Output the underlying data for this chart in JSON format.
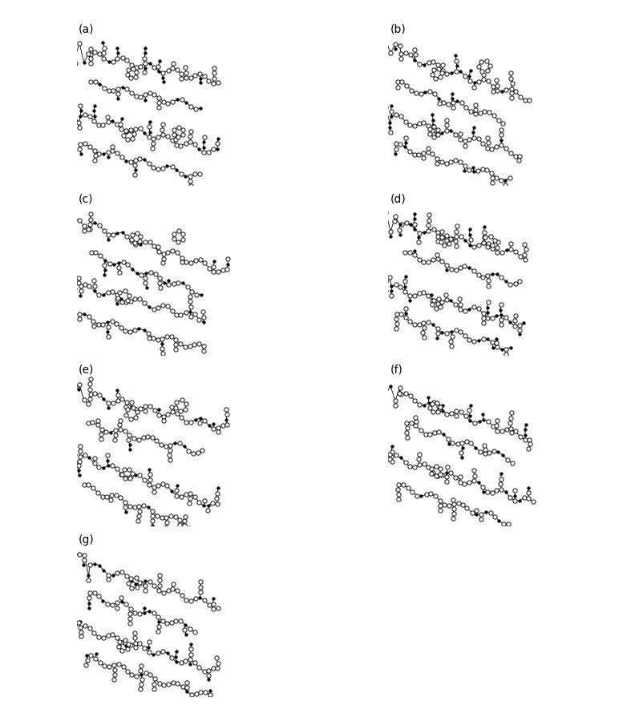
{
  "panels": [
    {
      "label": "(a)",
      "row": 0,
      "col": 0,
      "seed": 10
    },
    {
      "label": "(b)",
      "row": 0,
      "col": 1,
      "seed": 20
    },
    {
      "label": "(c)",
      "row": 1,
      "col": 0,
      "seed": 30
    },
    {
      "label": "(d)",
      "row": 1,
      "col": 1,
      "seed": 40
    },
    {
      "label": "(e)",
      "row": 2,
      "col": 0,
      "seed": 50
    },
    {
      "label": "(f)",
      "row": 2,
      "col": 1,
      "seed": 60
    },
    {
      "label": "(g)",
      "row": 3,
      "col": 0,
      "seed": 70
    }
  ],
  "n_rows": 4,
  "n_cols": 2,
  "figsize": [
    7.92,
    9.05
  ],
  "bg_color": "white",
  "bond_color": "black",
  "bond_lw": 0.6,
  "label_fontsize": 10,
  "label_fontweight": "normal"
}
